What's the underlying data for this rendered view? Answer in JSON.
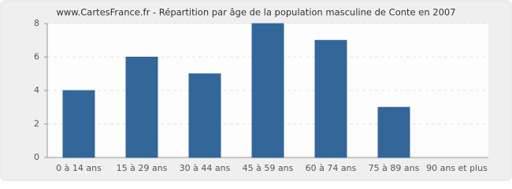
{
  "chart_data": {
    "type": "bar",
    "title": "www.CartesFrance.fr - Répartition par âge de la population masculine de Conte en 2007",
    "categories": [
      "0 à 14 ans",
      "15 à 29 ans",
      "30 à 44 ans",
      "45 à 59 ans",
      "60 à 74 ans",
      "75 à 89 ans",
      "90 ans et plus"
    ],
    "values": [
      4,
      6,
      5,
      8,
      7,
      3,
      0
    ],
    "color": "#336699",
    "ylim": [
      0,
      8
    ],
    "yticks": [
      0,
      2,
      4,
      6,
      8
    ],
    "grid": true
  }
}
